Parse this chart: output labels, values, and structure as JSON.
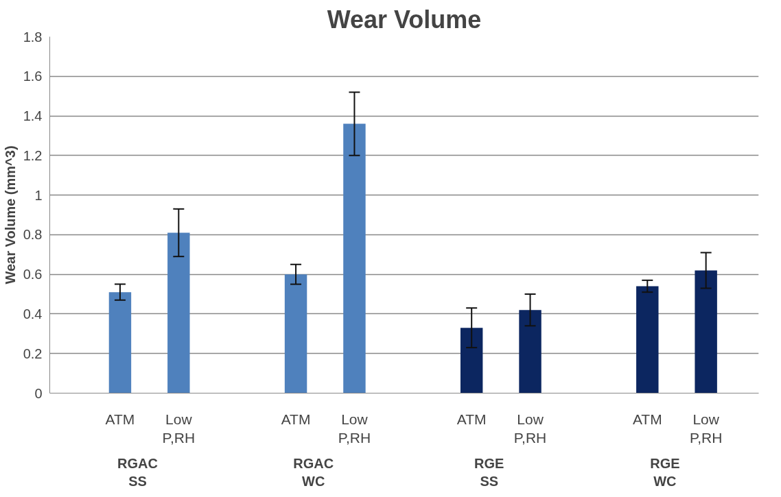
{
  "chart_data": {
    "type": "bar",
    "title": "Wear Volume",
    "ylabel": "Wear Volume (mm^3)",
    "categories": [
      "ATM",
      "Low\nP,RH",
      null,
      "ATM",
      "Low\nP,RH",
      null,
      "ATM",
      "Low\nP,RH",
      null,
      "ATM",
      "Low\nP,RH"
    ],
    "values": [
      0.51,
      0.81,
      null,
      0.6,
      1.36,
      null,
      0.33,
      0.42,
      null,
      0.54,
      0.62
    ],
    "errors": [
      0.04,
      0.12,
      null,
      0.05,
      0.16,
      null,
      0.1,
      0.08,
      null,
      0.03,
      0.09
    ],
    "colors": [
      "#4f81bd",
      "#4f81bd",
      null,
      "#4f81bd",
      "#4f81bd",
      null,
      "#0c2660",
      "#0c2660",
      null,
      "#0c2660",
      "#0c2660"
    ],
    "annotations": [
      "RGAC\nSS",
      "RGAC\nWC",
      "RGE\nSS",
      "RGE\nWC"
    ],
    "ylim": [
      0,
      1.8
    ],
    "yticks": [
      0,
      0.2,
      0.4,
      0.6,
      0.8,
      1,
      1.2,
      1.4,
      1.6,
      1.8
    ],
    "grid": "y"
  }
}
